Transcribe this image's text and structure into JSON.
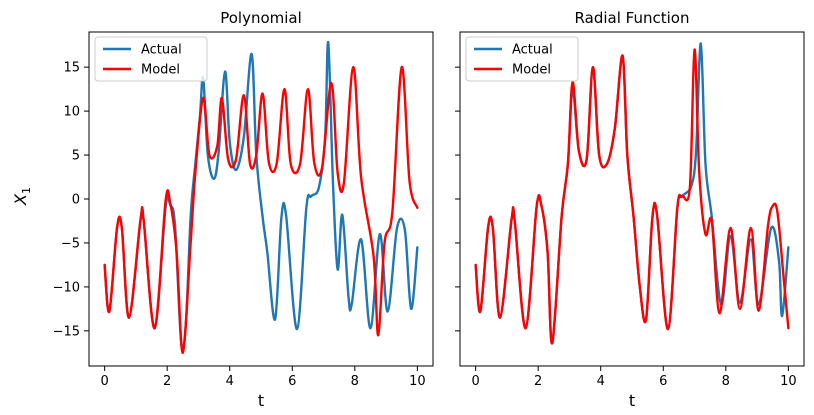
{
  "chart_data": {
    "type": "line",
    "shared_ylabel": "X",
    "shared_ylabel_subscript": "1",
    "xlabel": "t",
    "xlim": [
      -0.5,
      10.5
    ],
    "ylim": [
      -19,
      19
    ],
    "xticks": [
      0,
      2,
      4,
      6,
      8,
      10
    ],
    "yticks": [
      -15,
      -10,
      -5,
      0,
      5,
      10,
      15
    ],
    "legend": {
      "placement": "top-left",
      "entries": [
        "Actual",
        "Model"
      ]
    },
    "colors": {
      "actual": "#1f77b4",
      "model": "#ff0000"
    },
    "panels": [
      {
        "title": "Polynomial",
        "series": [
          {
            "name": "Actual",
            "points": [
              [
                0,
                -7.5
              ],
              [
                0.15,
                -12.8
              ],
              [
                0.4,
                -3.2
              ],
              [
                0.55,
                -3.3
              ],
              [
                0.78,
                -13.5
              ],
              [
                1.15,
                -2.3
              ],
              [
                1.25,
                -2.5
              ],
              [
                1.6,
                -14.7
              ],
              [
                1.95,
                -0.9
              ],
              [
                2.1,
                -0.7
              ],
              [
                2.25,
                -3.0
              ],
              [
                2.45,
                -16.4
              ],
              [
                2.6,
                -14.0
              ],
              [
                2.75,
                -2.0
              ],
              [
                2.9,
                4.0
              ],
              [
                3.05,
                9.5
              ],
              [
                3.15,
                13.8
              ],
              [
                3.3,
                5.0
              ],
              [
                3.5,
                2.3
              ],
              [
                3.65,
                5.5
              ],
              [
                3.85,
                14.5
              ],
              [
                4.0,
                6.5
              ],
              [
                4.2,
                3.3
              ],
              [
                4.45,
                7.0
              ],
              [
                4.7,
                16.5
              ],
              [
                4.85,
                5.0
              ],
              [
                5.05,
                -2.0
              ],
              [
                5.2,
                -6.0
              ],
              [
                5.45,
                -13.7
              ],
              [
                5.65,
                -2.2
              ],
              [
                5.8,
                -1.8
              ],
              [
                6.15,
                -14.8
              ],
              [
                6.45,
                -1.0
              ],
              [
                6.6,
                0.3
              ],
              [
                6.85,
                1.3
              ],
              [
                7.05,
                7.0
              ],
              [
                7.15,
                17.8
              ],
              [
                7.3,
                2.0
              ],
              [
                7.45,
                -8.0
              ],
              [
                7.6,
                -1.8
              ],
              [
                7.8,
                -11.2
              ],
              [
                7.9,
                -12.0
              ],
              [
                8.2,
                -4.6
              ],
              [
                8.5,
                -14.7
              ],
              [
                8.8,
                -4.0
              ],
              [
                9.05,
                -12.8
              ],
              [
                9.35,
                -3.3
              ],
              [
                9.6,
                -3.5
              ],
              [
                9.8,
                -12.5
              ],
              [
                10.0,
                -5.5
              ]
            ]
          },
          {
            "name": "Model",
            "points": [
              [
                0,
                -7.5
              ],
              [
                0.15,
                -12.8
              ],
              [
                0.4,
                -3.2
              ],
              [
                0.55,
                -3.3
              ],
              [
                0.78,
                -13.5
              ],
              [
                1.15,
                -2.3
              ],
              [
                1.25,
                -2.5
              ],
              [
                1.6,
                -14.7
              ],
              [
                1.95,
                -0.2
              ],
              [
                2.1,
                -0.5
              ],
              [
                2.3,
                -6.0
              ],
              [
                2.5,
                -17.5
              ],
              [
                2.75,
                -5.0
              ],
              [
                2.9,
                3.0
              ],
              [
                3.15,
                11.5
              ],
              [
                3.35,
                5.0
              ],
              [
                3.6,
                6.0
              ],
              [
                3.75,
                11.5
              ],
              [
                3.95,
                4.5
              ],
              [
                4.2,
                4.5
              ],
              [
                4.45,
                11.8
              ],
              [
                4.65,
                4.0
              ],
              [
                4.85,
                5.0
              ],
              [
                5.05,
                12.0
              ],
              [
                5.25,
                4.2
              ],
              [
                5.5,
                4.0
              ],
              [
                5.75,
                12.5
              ],
              [
                5.95,
                4.0
              ],
              [
                6.25,
                4.0
              ],
              [
                6.5,
                12.5
              ],
              [
                6.7,
                4.2
              ],
              [
                6.95,
                3.5
              ],
              [
                7.25,
                13.2
              ],
              [
                7.45,
                3.0
              ],
              [
                7.65,
                1.8
              ],
              [
                7.95,
                15.0
              ],
              [
                8.2,
                2.5
              ],
              [
                8.6,
                -6.5
              ],
              [
                8.75,
                -15.5
              ],
              [
                8.95,
                -5.0
              ],
              [
                9.2,
                -1.5
              ],
              [
                9.5,
                15.0
              ],
              [
                9.75,
                2.0
              ],
              [
                10.0,
                -1.0
              ]
            ]
          }
        ]
      },
      {
        "title": "Radial Function",
        "series": [
          {
            "name": "Actual",
            "points": [
              [
                0,
                -7.5
              ],
              [
                0.15,
                -12.8
              ],
              [
                0.4,
                -3.2
              ],
              [
                0.55,
                -3.3
              ],
              [
                0.78,
                -13.5
              ],
              [
                1.15,
                -2.3
              ],
              [
                1.25,
                -2.5
              ],
              [
                1.6,
                -14.7
              ],
              [
                1.95,
                -0.9
              ],
              [
                2.1,
                -0.7
              ],
              [
                2.3,
                -6.0
              ],
              [
                2.45,
                -16.4
              ],
              [
                2.75,
                -2.0
              ],
              [
                2.95,
                4.0
              ],
              [
                3.1,
                12.5
              ],
              [
                3.3,
                5.5
              ],
              [
                3.55,
                4.5
              ],
              [
                3.75,
                15.0
              ],
              [
                3.95,
                5.0
              ],
              [
                4.2,
                4.0
              ],
              [
                4.45,
                8.0
              ],
              [
                4.7,
                16.3
              ],
              [
                4.85,
                5.0
              ],
              [
                5.05,
                -2.0
              ],
              [
                5.25,
                -10.0
              ],
              [
                5.45,
                -13.7
              ],
              [
                5.65,
                -2.2
              ],
              [
                5.8,
                -1.8
              ],
              [
                6.15,
                -14.8
              ],
              [
                6.45,
                -1.0
              ],
              [
                6.6,
                0.3
              ],
              [
                6.9,
                1.5
              ],
              [
                7.05,
                5.5
              ],
              [
                7.2,
                17.7
              ],
              [
                7.35,
                4.0
              ],
              [
                7.55,
                -2.0
              ],
              [
                7.85,
                -12.0
              ],
              [
                8.15,
                -4.2
              ],
              [
                8.45,
                -11.8
              ],
              [
                8.8,
                -4.6
              ],
              [
                9.05,
                -12.0
              ],
              [
                9.45,
                -3.3
              ],
              [
                9.7,
                -7.0
              ],
              [
                9.8,
                -13.3
              ],
              [
                10.0,
                -5.5
              ]
            ]
          },
          {
            "name": "Model",
            "points": [
              [
                0,
                -7.5
              ],
              [
                0.15,
                -12.8
              ],
              [
                0.4,
                -3.2
              ],
              [
                0.55,
                -3.3
              ],
              [
                0.78,
                -13.5
              ],
              [
                1.15,
                -2.3
              ],
              [
                1.25,
                -2.5
              ],
              [
                1.6,
                -14.7
              ],
              [
                1.95,
                -0.9
              ],
              [
                2.1,
                -0.7
              ],
              [
                2.3,
                -6.0
              ],
              [
                2.45,
                -16.4
              ],
              [
                2.75,
                -2.0
              ],
              [
                2.95,
                4.0
              ],
              [
                3.1,
                13.3
              ],
              [
                3.3,
                5.5
              ],
              [
                3.55,
                4.5
              ],
              [
                3.75,
                15.0
              ],
              [
                3.95,
                5.0
              ],
              [
                4.2,
                4.0
              ],
              [
                4.45,
                8.0
              ],
              [
                4.7,
                16.3
              ],
              [
                4.85,
                5.0
              ],
              [
                5.05,
                -2.0
              ],
              [
                5.25,
                -10.0
              ],
              [
                5.45,
                -13.7
              ],
              [
                5.65,
                -2.2
              ],
              [
                5.8,
                -1.8
              ],
              [
                6.15,
                -14.8
              ],
              [
                6.45,
                -1.0
              ],
              [
                6.6,
                0.3
              ],
              [
                6.85,
                1.3
              ],
              [
                7.0,
                17.0
              ],
              [
                7.15,
                3.0
              ],
              [
                7.35,
                -4.0
              ],
              [
                7.55,
                -2.5
              ],
              [
                7.8,
                -13.0
              ],
              [
                8.15,
                -3.3
              ],
              [
                8.45,
                -12.5
              ],
              [
                8.8,
                -3.3
              ],
              [
                9.05,
                -12.7
              ],
              [
                9.35,
                -3.0
              ],
              [
                9.5,
                -0.8
              ],
              [
                9.65,
                -1.5
              ],
              [
                9.85,
                -9.0
              ],
              [
                10.0,
                -14.7
              ]
            ]
          }
        ]
      }
    ]
  }
}
